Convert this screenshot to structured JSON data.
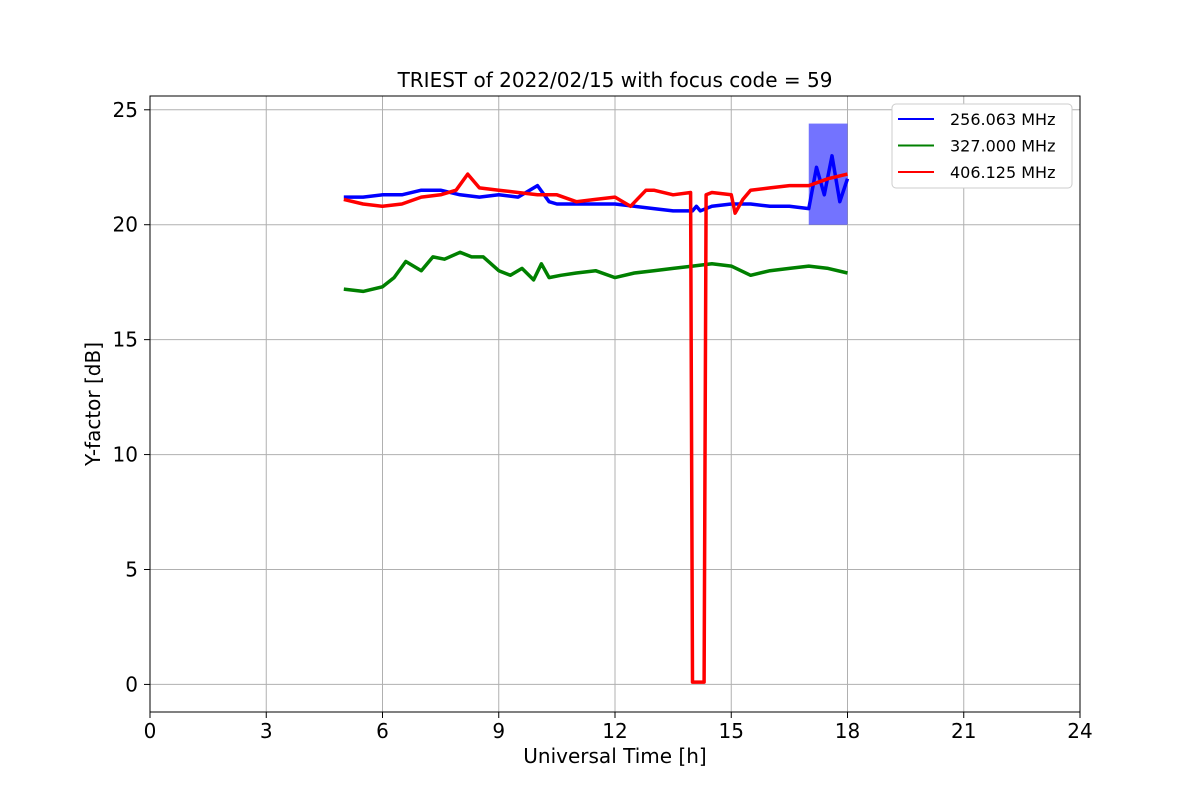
{
  "chart_data": {
    "type": "line",
    "title": "TRIEST of 2022/02/15 with focus code = 59",
    "xlabel": "Universal Time [h]",
    "ylabel": "Y-factor [dB]",
    "xlim": [
      0,
      24
    ],
    "ylim": [
      -1.2,
      25.6
    ],
    "xticks": [
      0,
      3,
      6,
      9,
      12,
      15,
      18,
      21,
      24
    ],
    "yticks": [
      0,
      5,
      10,
      15,
      20,
      25
    ],
    "grid": true,
    "legend_position": "top-right",
    "series": [
      {
        "name": "256.063 MHz",
        "color": "#0000ff",
        "x": [
          5.0,
          5.5,
          6.0,
          6.5,
          7.0,
          7.5,
          8.0,
          8.5,
          9.0,
          9.5,
          10.0,
          10.3,
          10.5,
          11.0,
          11.5,
          12.0,
          12.5,
          13.0,
          13.5,
          14.0,
          14.1,
          14.2,
          14.5,
          15.0,
          15.5,
          16.0,
          16.5,
          17.0,
          17.2,
          17.4,
          17.6,
          17.8,
          18.0
        ],
        "y": [
          21.2,
          21.2,
          21.3,
          21.3,
          21.5,
          21.5,
          21.3,
          21.2,
          21.3,
          21.2,
          21.7,
          21.0,
          20.9,
          20.9,
          20.9,
          20.9,
          20.8,
          20.7,
          20.6,
          20.6,
          20.8,
          20.6,
          20.8,
          20.9,
          20.9,
          20.8,
          20.8,
          20.7,
          22.5,
          21.3,
          23.0,
          21.0,
          22.0
        ],
        "band": {
          "x_start": 17.0,
          "x_end": 18.0,
          "y_min": 20.0,
          "y_max": 24.4
        }
      },
      {
        "name": "327.000 MHz",
        "color": "#008000",
        "x": [
          5.0,
          5.5,
          6.0,
          6.3,
          6.6,
          7.0,
          7.3,
          7.6,
          8.0,
          8.3,
          8.6,
          9.0,
          9.3,
          9.6,
          9.9,
          10.1,
          10.3,
          10.6,
          11.0,
          11.5,
          12.0,
          12.5,
          13.0,
          13.5,
          14.0,
          14.5,
          15.0,
          15.5,
          16.0,
          16.5,
          17.0,
          17.5,
          18.0
        ],
        "y": [
          17.2,
          17.1,
          17.3,
          17.7,
          18.4,
          18.0,
          18.6,
          18.5,
          18.8,
          18.6,
          18.6,
          18.0,
          17.8,
          18.1,
          17.6,
          18.3,
          17.7,
          17.8,
          17.9,
          18.0,
          17.7,
          17.9,
          18.0,
          18.1,
          18.2,
          18.3,
          18.2,
          17.8,
          18.0,
          18.1,
          18.2,
          18.1,
          17.9
        ]
      },
      {
        "name": "406.125 MHz",
        "color": "#ff0000",
        "x": [
          5.0,
          5.5,
          6.0,
          6.5,
          7.0,
          7.5,
          7.9,
          8.2,
          8.5,
          9.0,
          9.5,
          10.0,
          10.5,
          11.0,
          11.5,
          12.0,
          12.4,
          12.8,
          13.0,
          13.5,
          13.95,
          14.0,
          14.3,
          14.35,
          14.5,
          15.0,
          15.1,
          15.3,
          15.5,
          16.0,
          16.5,
          17.0,
          17.5,
          18.0
        ],
        "y": [
          21.1,
          20.9,
          20.8,
          20.9,
          21.2,
          21.3,
          21.5,
          22.2,
          21.6,
          21.5,
          21.4,
          21.3,
          21.3,
          21.0,
          21.1,
          21.2,
          20.8,
          21.5,
          21.5,
          21.3,
          21.4,
          0.1,
          0.1,
          21.3,
          21.4,
          21.3,
          20.5,
          21.1,
          21.5,
          21.6,
          21.7,
          21.7,
          22.0,
          22.2
        ]
      }
    ]
  }
}
